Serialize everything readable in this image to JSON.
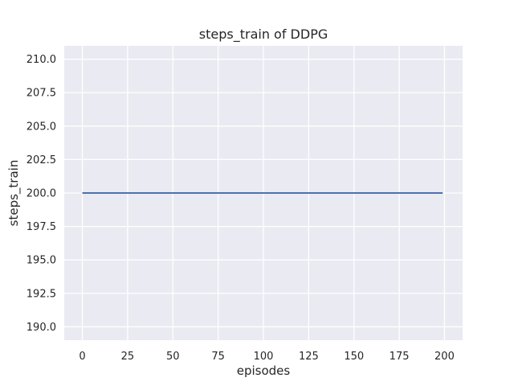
{
  "chart_data": {
    "type": "line",
    "title": "steps_train of DDPG",
    "xlabel": "episodes",
    "ylabel": "steps_train",
    "x_ticks": [
      0,
      25,
      50,
      75,
      100,
      125,
      150,
      175,
      200
    ],
    "x_tick_labels": [
      "0",
      "25",
      "50",
      "75",
      "100",
      "125",
      "150",
      "175",
      "200"
    ],
    "y_ticks": [
      210.0,
      207.5,
      205.0,
      202.5,
      200.0,
      197.5,
      195.0,
      192.5,
      190.0
    ],
    "y_tick_labels": [
      "210.0",
      "207.5",
      "205.0",
      "202.5",
      "200.0",
      "197.5",
      "195.0",
      "192.5",
      "190.0"
    ],
    "xlim": [
      -10,
      210
    ],
    "ylim": [
      189,
      211
    ],
    "grid": true,
    "legend": "none",
    "series": [
      {
        "name": "steps_train",
        "x": [
          0,
          199
        ],
        "y": [
          200,
          200
        ],
        "color": "#4C72B0"
      }
    ]
  },
  "colors": {
    "figure_bg": "#FFFFFF",
    "axes_bg": "#EAEAF2",
    "grid": "#FFFFFF",
    "text": "#262626",
    "line": "#4C72B0"
  }
}
